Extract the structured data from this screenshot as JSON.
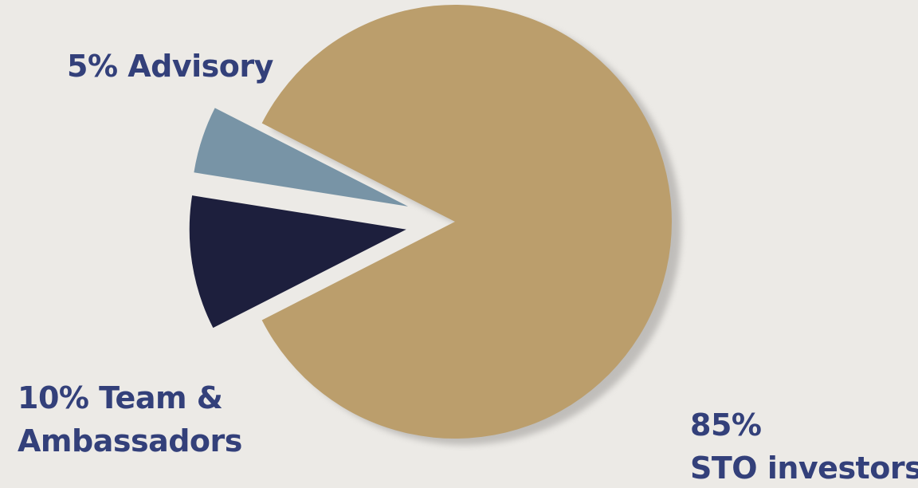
{
  "chart_data": {
    "type": "pie",
    "title": "",
    "slices": [
      {
        "name": "STO investors",
        "value": 85,
        "color": "#BB9E6C",
        "label_lines": [
          "85%",
          "STO investors"
        ]
      },
      {
        "name": "Team & Ambassadors",
        "value": 10,
        "color": "#1D1F3D",
        "label_lines": [
          "10% Team &",
          "Ambassadors"
        ]
      },
      {
        "name": "Advisory",
        "value": 5,
        "color": "#7894A6",
        "label_lines": [
          "5% Advisory"
        ]
      }
    ],
    "exploded": [
      "Team & Ambassadors",
      "Advisory"
    ],
    "legend": "none",
    "label_color": "#33407A",
    "background": "#ECEAE6"
  }
}
